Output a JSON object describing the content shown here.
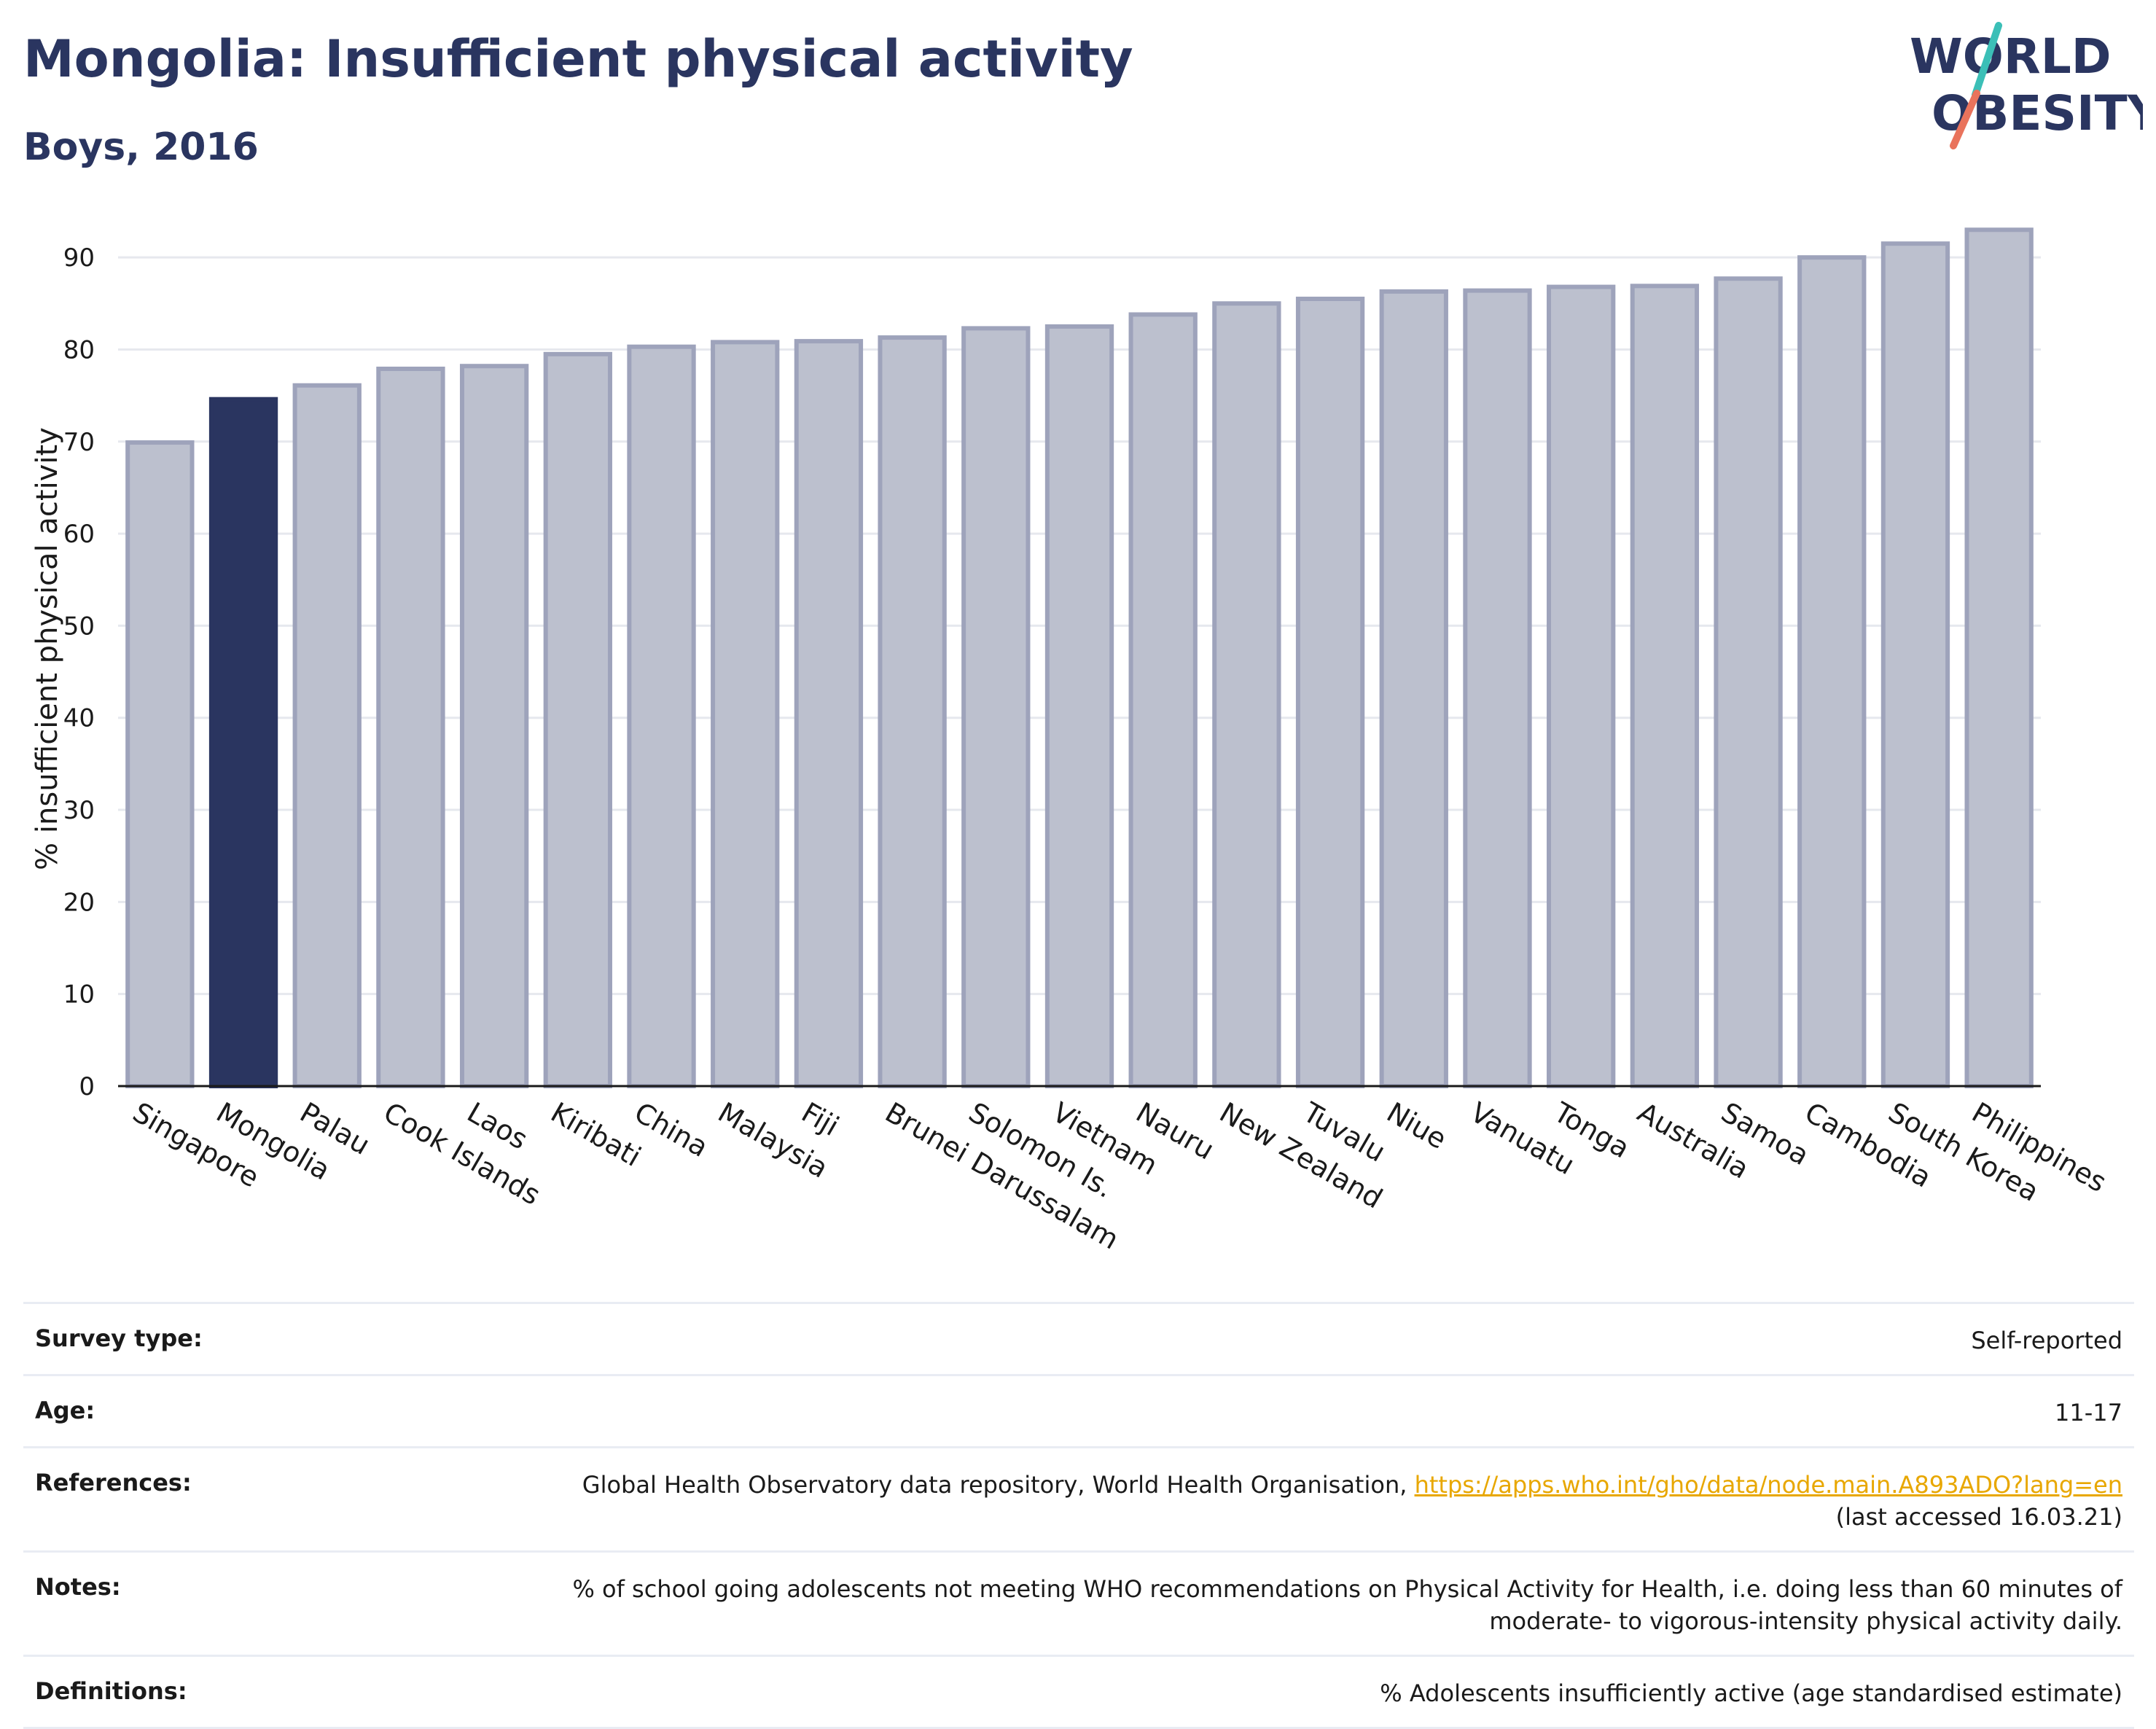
{
  "header": {
    "title": "Mongolia: Insufficient physical activity",
    "subtitle": "Boys, 2016"
  },
  "logo": {
    "line1": "WORLD",
    "line2": "OBESITY",
    "colors": {
      "text": "#2a3560",
      "teal": "#3bbfb7",
      "coral": "#e9735c"
    }
  },
  "chart_data": {
    "type": "bar",
    "ylabel": "% insufficient physical activity",
    "xlabel": "",
    "ylim": [
      0,
      95
    ],
    "yticks": [
      0,
      10,
      20,
      30,
      40,
      50,
      60,
      70,
      80,
      90
    ],
    "grid": true,
    "highlight": "Mongolia",
    "colors": {
      "bar": "#bcc0ce",
      "bar_edge": "#9ea3bb",
      "highlight": "#2a3560",
      "grid": "#e6e8ee"
    },
    "categories": [
      "Singapore",
      "Mongolia",
      "Palau",
      "Cook Islands",
      "Laos",
      "Kiribati",
      "China",
      "Malaysia",
      "Fiji",
      "Brunei Darussalam",
      "Solomon Is.",
      "Vietnam",
      "Nauru",
      "New Zealand",
      "Tuvalu",
      "Niue",
      "Vanuatu",
      "Tonga",
      "Australia",
      "Samoa",
      "Cambodia",
      "South Korea",
      "Philippines"
    ],
    "values": [
      69.9,
      74.6,
      76.1,
      77.9,
      78.2,
      79.5,
      80.3,
      80.8,
      80.9,
      81.3,
      82.3,
      82.5,
      83.8,
      85.0,
      85.5,
      86.3,
      86.4,
      86.8,
      86.9,
      87.7,
      90.0,
      91.5,
      93.0
    ]
  },
  "info": {
    "rows": [
      {
        "label": "Survey type:",
        "value": "Self-reported"
      },
      {
        "label": "Age:",
        "value": "11-17"
      },
      {
        "label": "References:",
        "value": "Global Health Observatory data repository, World Health Organisation,",
        "link": "https://apps.who.int/gho/data/node.main.A893ADO?lang=en",
        "value2": "(last accessed 16.03.21)"
      },
      {
        "label": "Notes:",
        "value": "% of school going adolescents not meeting WHO recommendations on Physical Activity for Health, i.e. doing less than 60 minutes of moderate- to vigorous-intensity physical activity daily."
      },
      {
        "label": "Definitions:",
        "value": "% Adolescents insufficiently active (age standardised estimate)"
      }
    ]
  }
}
